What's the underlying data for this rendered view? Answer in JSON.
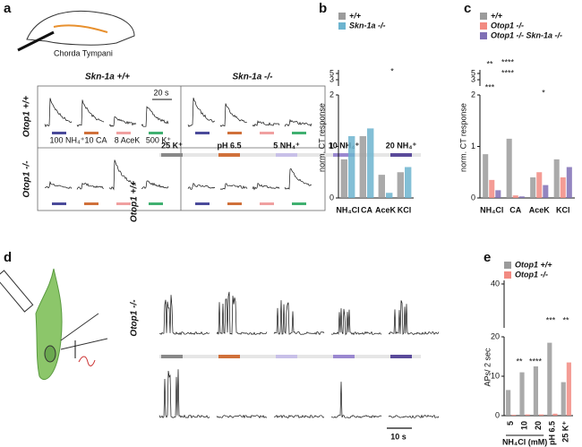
{
  "panels": {
    "a": {
      "label": "a",
      "nerve": "Chorda Tympani",
      "columns": [
        "Skn-1a +/+",
        "Skn-1a -/-"
      ],
      "rows": [
        "Otop1 +/+",
        "Otop1 -/-"
      ],
      "scale": "20 s",
      "stimuli": [
        "100 NH₄⁺",
        "10 CA",
        "8 AceK",
        "500 K⁺"
      ]
    },
    "b": {
      "label": "b"
    },
    "c": {
      "label": "c"
    },
    "d": {
      "label": "d",
      "stimuli": [
        "25 K⁺",
        "pH 6.5",
        "5 NH₄⁺",
        "10 NH₄⁺",
        "20 NH₄⁺"
      ],
      "rows": [
        "Otop1 +/+",
        "Otop1 -/-"
      ],
      "scale": "10 s"
    },
    "e": {
      "label": "e"
    }
  },
  "chart_data": [
    {
      "type": "bar",
      "ylabel": "norm. CT response",
      "categories": [
        "NH₄Cl",
        "CA",
        "AceK",
        "KCl"
      ],
      "series": [
        {
          "name": "+/+",
          "color": "#9b9b9b",
          "values": [
            0.75,
            1.2,
            0.45,
            0.5
          ]
        },
        {
          "name": "Skn-1a -/-",
          "color": "#6db4cf",
          "values": [
            1.2,
            1.35,
            0.1,
            0.6
          ]
        }
      ],
      "ylim": [
        0,
        2
      ],
      "yticks": [
        0,
        1,
        2
      ],
      "break_ticks": [
        3,
        5
      ],
      "annotations": [
        "*"
      ]
    },
    {
      "type": "bar",
      "ylabel": "norm. CT response",
      "categories": [
        "NH₄Cl",
        "CA",
        "AceK",
        "KCl"
      ],
      "series": [
        {
          "name": "+/+",
          "color": "#9b9b9b",
          "values": [
            0.85,
            1.15,
            0.4,
            0.75
          ]
        },
        {
          "name": "Otop1 -/-",
          "color": "#f28b82",
          "values": [
            0.35,
            0.05,
            0.5,
            0.4
          ]
        },
        {
          "name": "Otop1 -/-  Skn-1a -/-",
          "color": "#8070b5",
          "values": [
            0.15,
            0.03,
            0.25,
            0.6
          ]
        }
      ],
      "ylim": [
        0,
        2
      ],
      "yticks": [
        0,
        1,
        2
      ],
      "break_ticks": [
        3,
        5
      ],
      "annotations": [
        "**",
        "***",
        "****",
        "****",
        "*"
      ]
    },
    {
      "type": "bar",
      "ylabel": "APs/ 2 sec",
      "xlabel": "NH₄Cl (mM)",
      "categories": [
        "5",
        "10",
        "20",
        "pH 6.5",
        "25 K⁺"
      ],
      "series": [
        {
          "name": "Otop1 +/+",
          "color": "#9b9b9b",
          "values": [
            6.5,
            11,
            12.5,
            18.5,
            8.5
          ]
        },
        {
          "name": "Otop1 -/-",
          "color": "#f28b82",
          "values": [
            0.2,
            0.3,
            0.3,
            0.5,
            13.5
          ]
        }
      ],
      "ylim": [
        0,
        20
      ],
      "yticks": [
        0,
        10,
        20
      ],
      "break_ticks": [
        40
      ],
      "annotations": [
        "**",
        "****",
        "***",
        "**"
      ]
    }
  ]
}
